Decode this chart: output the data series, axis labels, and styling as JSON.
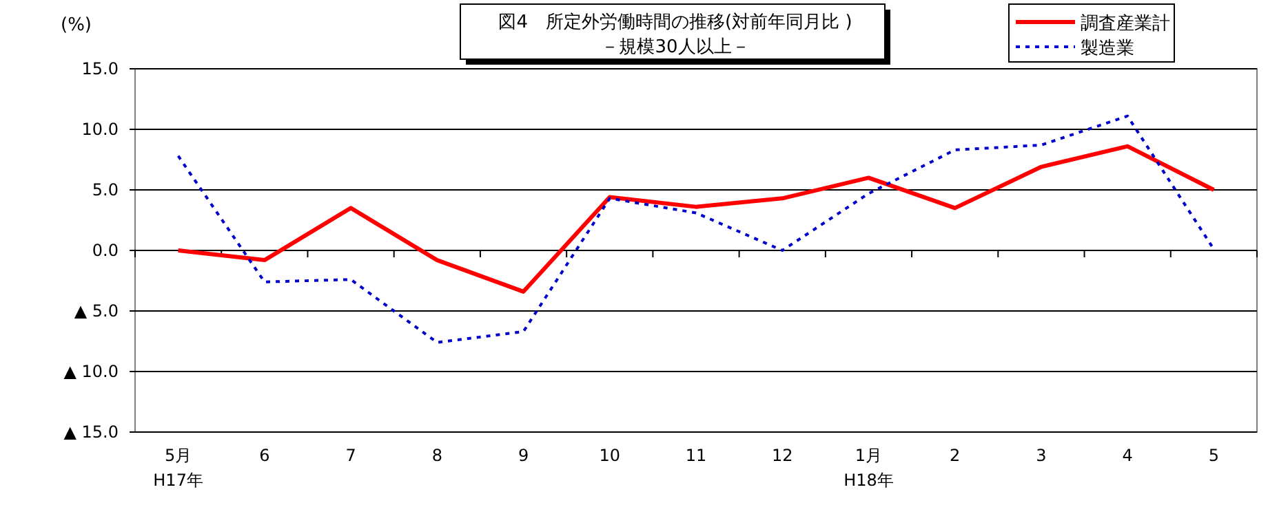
{
  "chart_data": {
    "type": "line",
    "title": "図4　所定外労働時間の推移(対前年同月比 )",
    "subtitle": "－規模30人以上－",
    "ylabel": "(%)",
    "categories": [
      "5月\nH17年",
      "6",
      "7",
      "8",
      "9",
      "10",
      "11",
      "12",
      "1月\nH18年",
      "2",
      "3",
      "4",
      "5"
    ],
    "series": [
      {
        "name": "調査産業計",
        "color": "#ff0000",
        "line_style": "solid",
        "values": [
          0.0,
          -0.8,
          3.5,
          -0.8,
          -3.4,
          4.4,
          3.6,
          4.3,
          6.0,
          3.5,
          6.9,
          8.6,
          5.0
        ]
      },
      {
        "name": "製造業",
        "color": "#0000cc",
        "line_style": "dotted",
        "values": [
          7.8,
          -2.6,
          -2.4,
          -7.6,
          -6.7,
          4.3,
          3.1,
          0.0,
          4.7,
          8.3,
          8.7,
          11.1,
          0.1
        ]
      }
    ],
    "ylim": [
      -15,
      15
    ],
    "yticks": [
      {
        "value": 15,
        "label": "15.0"
      },
      {
        "value": 10,
        "label": "10.0"
      },
      {
        "value": 5,
        "label": "5.0"
      },
      {
        "value": 0,
        "label": "0.0"
      },
      {
        "value": -5,
        "label": "▲ 5.0"
      },
      {
        "value": -10,
        "label": "▲ 10.0"
      },
      {
        "value": -15,
        "label": "▲ 15.0"
      }
    ],
    "grid": "y",
    "legend": "top right",
    "marker": "none"
  }
}
